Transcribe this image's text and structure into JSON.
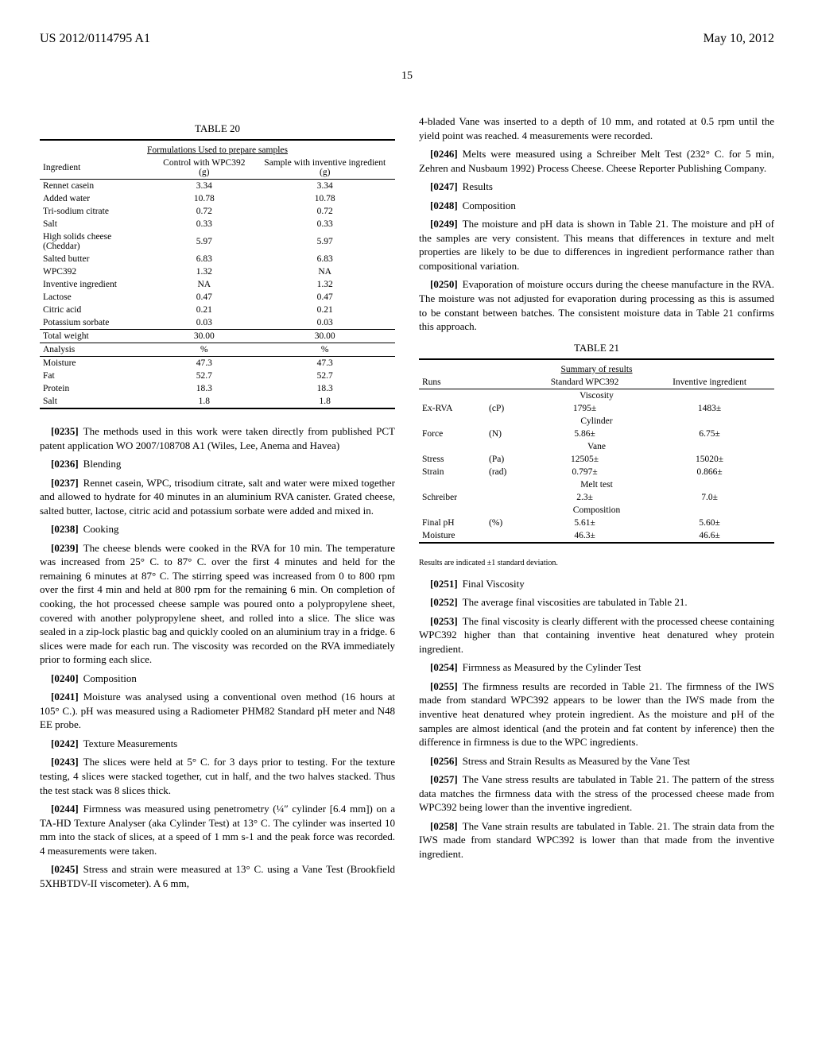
{
  "header": {
    "doc_number": "US 2012/0114795 A1",
    "date": "May 10, 2012",
    "page_number": "15"
  },
  "table20": {
    "caption": "TABLE 20",
    "subcaption": "Formulations Used to prepare samples",
    "col_headers": [
      "Ingredient",
      "Control with WPC392 (g)",
      "Sample with inventive ingredient (g)"
    ],
    "rows": [
      [
        "Rennet casein",
        "3.34",
        "3.34"
      ],
      [
        "Added water",
        "10.78",
        "10.78"
      ],
      [
        "Tri-sodium citrate",
        "0.72",
        "0.72"
      ],
      [
        "Salt",
        "0.33",
        "0.33"
      ],
      [
        "High solids cheese (Cheddar)",
        "5.97",
        "5.97"
      ],
      [
        "Salted butter",
        "6.83",
        "6.83"
      ],
      [
        "WPC392",
        "1.32",
        "NA"
      ],
      [
        "Inventive ingredient",
        "NA",
        "1.32"
      ],
      [
        "Lactose",
        "0.47",
        "0.47"
      ],
      [
        "Citric acid",
        "0.21",
        "0.21"
      ],
      [
        "Potassium sorbate",
        "0.03",
        "0.03"
      ]
    ],
    "total_row": [
      "Total weight",
      "30.00",
      "30.00"
    ],
    "analysis_header": [
      "Analysis",
      "%",
      "%"
    ],
    "analysis_rows": [
      [
        "Moisture",
        "47.3",
        "47.3"
      ],
      [
        "Fat",
        "52.7",
        "52.7"
      ],
      [
        "Protein",
        "18.3",
        "18.3"
      ],
      [
        "Salt",
        "1.8",
        "1.8"
      ]
    ]
  },
  "left_paras": [
    {
      "n": "[0235]",
      "t": "The methods used in this work were taken directly from published PCT patent application WO 2007/108708 A1 (Wiles, Lee, Anema and Havea)"
    },
    {
      "n": "[0236]",
      "t": "Blending"
    },
    {
      "n": "[0237]",
      "t": "Rennet casein, WPC, trisodium citrate, salt and water were mixed together and allowed to hydrate for 40 minutes in an aluminium RVA canister. Grated cheese, salted butter, lactose, citric acid and potassium sorbate were added and mixed in."
    },
    {
      "n": "[0238]",
      "t": "Cooking"
    },
    {
      "n": "[0239]",
      "t": "The cheese blends were cooked in the RVA for 10 min. The temperature was increased from 25° C. to 87° C. over the first 4 minutes and held for the remaining 6 minutes at 87° C. The stirring speed was increased from 0 to 800 rpm over the first 4 min and held at 800 rpm for the remaining 6 min. On completion of cooking, the hot processed cheese sample was poured onto a polypropylene sheet, covered with another polypropylene sheet, and rolled into a slice. The slice was sealed in a zip-lock plastic bag and quickly cooled on an aluminium tray in a fridge. 6 slices were made for each run. The viscosity was recorded on the RVA immediately prior to forming each slice."
    },
    {
      "n": "[0240]",
      "t": "Composition"
    },
    {
      "n": "[0241]",
      "t": "Moisture was analysed using a conventional oven method (16 hours at 105° C.). pH was measured using a Radiometer PHM82 Standard pH meter and N48 EE probe."
    },
    {
      "n": "[0242]",
      "t": "Texture Measurements"
    },
    {
      "n": "[0243]",
      "t": "The slices were held at 5° C. for 3 days prior to testing. For the texture testing, 4 slices were stacked together, cut in half, and the two halves stacked. Thus the test stack was 8 slices thick."
    },
    {
      "n": "[0244]",
      "t": "Firmness was measured using penetrometry (¼″ cylinder [6.4 mm]) on a TA-HD Texture Analyser (aka Cylinder Test) at 13° C. The cylinder was inserted 10 mm into the stack of slices, at a speed of 1 mm s-1 and the peak force was recorded. 4 measurements were taken."
    },
    {
      "n": "[0245]",
      "t": "Stress and strain were measured at 13° C. using a Vane Test (Brookfield 5XHBTDV-II viscometer). A 6 mm,"
    }
  ],
  "right_paras_pre": [
    {
      "n": "",
      "t": "4-bladed Vane was inserted to a depth of 10 mm, and rotated at 0.5 rpm until the yield point was reached. 4 measurements were recorded."
    },
    {
      "n": "[0246]",
      "t": "Melts were measured using a Schreiber Melt Test (232° C. for 5 min, Zehren and Nusbaum 1992) Process Cheese. Cheese Reporter Publishing Company."
    },
    {
      "n": "[0247]",
      "t": "Results"
    },
    {
      "n": "[0248]",
      "t": "Composition"
    },
    {
      "n": "[0249]",
      "t": "The moisture and pH data is shown in Table 21. The moisture and pH of the samples are very consistent. This means that differences in texture and melt properties are likely to be due to differences in ingredient performance rather than compositional variation."
    },
    {
      "n": "[0250]",
      "t": "Evaporation of moisture occurs during the cheese manufacture in the RVA. The moisture was not adjusted for evaporation during processing as this is assumed to be constant between batches. The consistent moisture data in Table 21 confirms this approach."
    }
  ],
  "table21": {
    "caption": "TABLE 21",
    "subcaption": "Summary of results",
    "header_row": [
      "Runs",
      "",
      "Standard WPC392",
      "Inventive ingredient"
    ],
    "sections": [
      {
        "title": "Viscosity",
        "rows": [
          [
            "Ex-RVA",
            "(cP)",
            "1795±",
            "1483±"
          ]
        ]
      },
      {
        "title": "Cylinder",
        "rows": [
          [
            "Force",
            "(N)",
            "5.86±",
            "6.75±"
          ]
        ]
      },
      {
        "title": "Vane",
        "rows": [
          [
            "Stress",
            "(Pa)",
            "12505±",
            "15020±"
          ],
          [
            "Strain",
            "(rad)",
            "0.797±",
            "0.866±"
          ]
        ]
      },
      {
        "title": "Melt test",
        "rows": [
          [
            "Schreiber",
            "",
            "2.3±",
            "7.0±"
          ]
        ]
      },
      {
        "title": "Composition",
        "rows": [
          [
            "Final pH",
            "(%)",
            "5.61±",
            "5.60±"
          ],
          [
            "Moisture",
            "",
            "46.3±",
            "46.6±"
          ]
        ]
      }
    ],
    "footnote": "Results are indicated ±1 standard deviation."
  },
  "right_paras_post": [
    {
      "n": "[0251]",
      "t": "Final Viscosity"
    },
    {
      "n": "[0252]",
      "t": "The average final viscosities are tabulated in Table 21."
    },
    {
      "n": "[0253]",
      "t": "The final viscosity is clearly different with the processed cheese containing WPC392 higher than that containing inventive heat denatured whey protein ingredient."
    },
    {
      "n": "[0254]",
      "t": "Firmness as Measured by the Cylinder Test"
    },
    {
      "n": "[0255]",
      "t": "The firmness results are recorded in Table 21. The firmness of the IWS made from standard WPC392 appears to be lower than the IWS made from the inventive heat denatured whey protein ingredient. As the moisture and pH of the samples are almost identical (and the protein and fat content by inference) then the difference in firmness is due to the WPC ingredients."
    },
    {
      "n": "[0256]",
      "t": "Stress and Strain Results as Measured by the Vane Test"
    },
    {
      "n": "[0257]",
      "t": "The Vane stress results are tabulated in Table 21. The pattern of the stress data matches the firmness data with the stress of the processed cheese made from WPC392 being lower than the inventive ingredient."
    },
    {
      "n": "[0258]",
      "t": "The Vane strain results are tabulated in Table. 21. The strain data from the IWS made from standard WPC392 is lower than that made from the inventive ingredient."
    }
  ]
}
